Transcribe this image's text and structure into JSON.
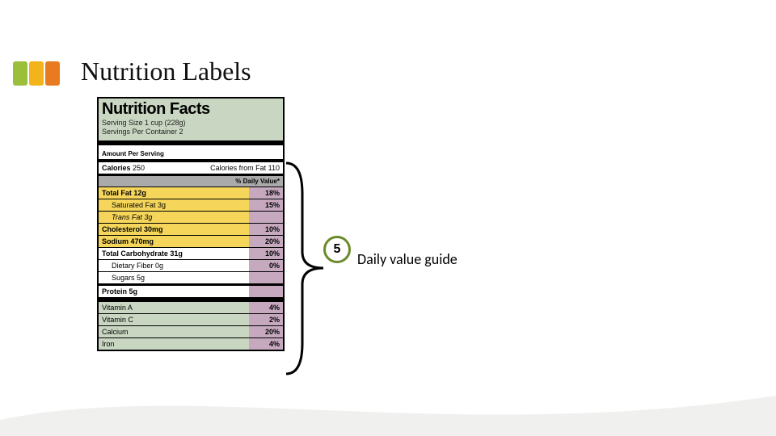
{
  "tabs": {
    "colors": [
      "#9bbf3b",
      "#f3b31a",
      "#e87a1f"
    ]
  },
  "title": "Nutrition Labels",
  "label": {
    "heading": "Nutrition Facts",
    "serving_size": "Serving Size 1 cup (228g)",
    "servings_per": "Servings Per Container  2",
    "amount_per_serving": "Amount Per Serving",
    "calories_label": "Calories",
    "calories_value": "250",
    "calories_from_fat": "Calories from Fat 110",
    "dv_header": "% Daily Value*",
    "rows": [
      {
        "label": "Total Fat 12g",
        "dv": "18%",
        "bold": true,
        "bgRow": "yellow"
      },
      {
        "label": "Saturated Fat 3g",
        "dv": "15%",
        "bold": false,
        "bgRow": "yellow",
        "indent": true
      },
      {
        "label": "Trans Fat 3g",
        "dv": "",
        "bold": false,
        "bgRow": "yellow",
        "indent": true,
        "italic": true
      },
      {
        "label": "Cholesterol 30mg",
        "dv": "10%",
        "bold": true,
        "bgRow": "yellow"
      },
      {
        "label": "Sodium 470mg",
        "dv": "20%",
        "bold": true,
        "bgRow": "yellow"
      },
      {
        "label": "Total Carbohydrate 31g",
        "dv": "10%",
        "bold": true,
        "bgRow": "white"
      },
      {
        "label": "Dietary Fiber 0g",
        "dv": "0%",
        "bold": false,
        "bgRow": "white",
        "indent": true
      },
      {
        "label": "Sugars 5g",
        "dv": "",
        "bold": false,
        "bgRow": "white",
        "indent": true
      }
    ],
    "protein": {
      "label": "Protein 5g",
      "dv": ""
    },
    "vitamins": [
      {
        "label": "Vitamin A",
        "dv": "4%"
      },
      {
        "label": "Vitamin C",
        "dv": "2%"
      },
      {
        "label": "Calcium",
        "dv": "20%"
      },
      {
        "label": "Iron",
        "dv": "4%"
      }
    ],
    "colors": {
      "header_bg": "#c9d6c2",
      "dv_col_bg": "#c6a9bf",
      "row_yellow": "#f5d65b",
      "row_green": "#c9d6c2"
    }
  },
  "callout": {
    "number": "5",
    "text": "Daily value guide",
    "circle_border": "#6a8a2a",
    "circle_text": "#000000"
  },
  "swoosh_color": "#f0f0ee"
}
